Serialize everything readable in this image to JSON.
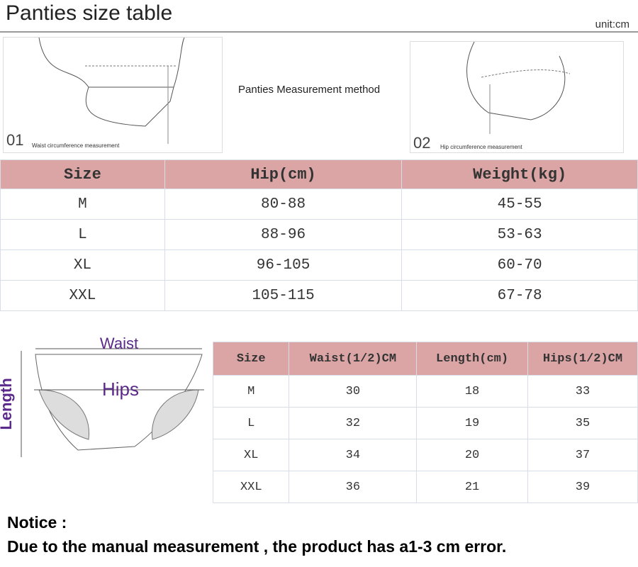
{
  "header": {
    "title": "Panties size table",
    "unit": "unit:cm"
  },
  "measurement": {
    "caption": "Panties Measurement method",
    "left": {
      "number": "01",
      "label": "Waist circumference measurement"
    },
    "right": {
      "number": "02",
      "label": "Hip circumference measurement"
    }
  },
  "table1": {
    "headers": [
      "Size",
      "Hip(cm)",
      "Weight(kg)"
    ],
    "rows": [
      [
        "M",
        "80-88",
        "45-55"
      ],
      [
        "L",
        "88-96",
        "53-63"
      ],
      [
        "XL",
        "96-105",
        "60-70"
      ],
      [
        "XXL",
        "105-115",
        "67-78"
      ]
    ]
  },
  "diagram": {
    "waist": "Waist",
    "hips": "Hips",
    "length": "Length"
  },
  "table2": {
    "headers": [
      "Size",
      "Waist(1/2)CM",
      "Length(cm)",
      "Hips(1/2)CM"
    ],
    "rows": [
      [
        "M",
        30,
        18,
        33
      ],
      [
        "L",
        32,
        19,
        35
      ],
      [
        "XL",
        34,
        20,
        37
      ],
      [
        "XXL",
        36,
        21,
        39
      ]
    ]
  },
  "notice": {
    "title": "Notice :",
    "text": "Due to the manual measurement , the product has a1-3 cm error."
  }
}
